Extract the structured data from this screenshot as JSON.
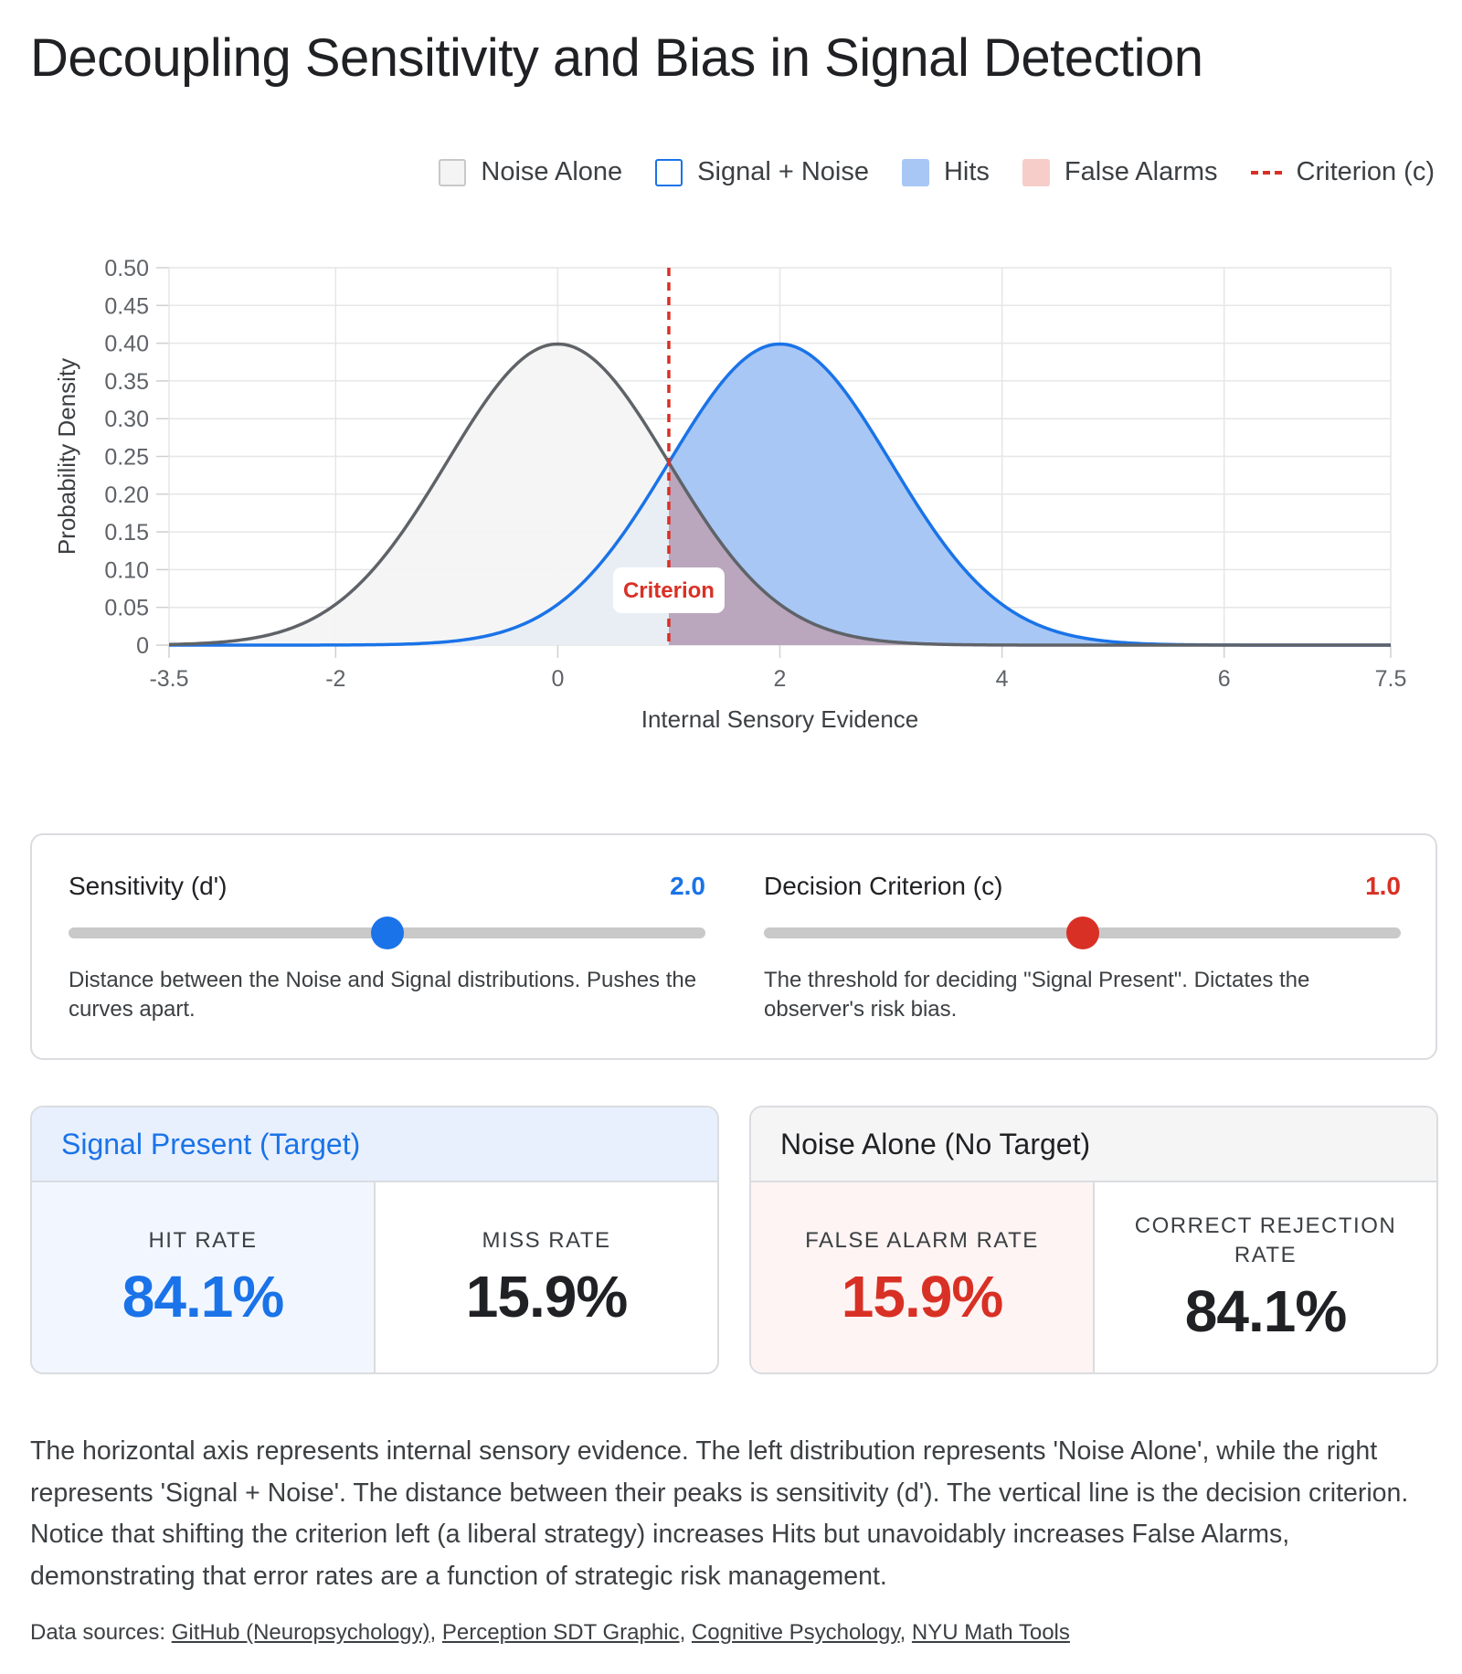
{
  "title": "Decoupling Sensitivity and Bias in Signal Detection",
  "legend": [
    {
      "key": "noise",
      "label": "Noise Alone",
      "color": "#f4f4f4"
    },
    {
      "key": "signal",
      "label": "Signal + Noise",
      "color": "#1a73e8"
    },
    {
      "key": "hits",
      "label": "Hits",
      "color": "#a8c7f5"
    },
    {
      "key": "fa",
      "label": "False Alarms",
      "color": "#f6cdc8"
    },
    {
      "key": "criterion",
      "label": "Criterion (c)",
      "color": "#d93025"
    }
  ],
  "chart_data": {
    "type": "area",
    "xlabel": "Internal Sensory Evidence",
    "ylabel": "Probability Density",
    "xlim": [
      -3.5,
      7.5
    ],
    "ylim": [
      0,
      0.5
    ],
    "x_ticks": [
      "-3.5",
      "-2",
      "0",
      "2",
      "4",
      "6",
      "7.5"
    ],
    "x_tick_values": [
      -3.5,
      -2,
      0,
      2,
      4,
      6,
      7.5
    ],
    "y_ticks": [
      "0",
      "0.05",
      "0.10",
      "0.15",
      "0.20",
      "0.25",
      "0.30",
      "0.35",
      "0.40",
      "0.45",
      "0.50"
    ],
    "y_tick_values": [
      0,
      0.05,
      0.1,
      0.15,
      0.2,
      0.25,
      0.3,
      0.35,
      0.4,
      0.45,
      0.5
    ],
    "grid": true,
    "legend_position": "top-right",
    "series": [
      {
        "name": "Noise Alone",
        "distribution": "normal",
        "mean": 0,
        "sd": 1,
        "color": "#5f6368"
      },
      {
        "name": "Signal + Noise",
        "distribution": "normal",
        "mean": 2.0,
        "sd": 1,
        "color": "#1a73e8"
      }
    ],
    "criterion": 1.0,
    "criterion_label": "Criterion",
    "criterion_color": "#d93025"
  },
  "controls": {
    "sensitivity": {
      "label": "Sensitivity (d')",
      "value": "2.0",
      "level": 0.5,
      "description": "Distance between the Noise and Signal distributions. Pushes the curves apart."
    },
    "criterion": {
      "label": "Decision Criterion (c)",
      "value": "1.0",
      "level": 0.5,
      "description": "The threshold for deciding \"Signal Present\". Dictates the observer's risk bias."
    }
  },
  "signal_present": {
    "title": "Signal Present (Target)",
    "hit_label": "HIT RATE",
    "hit_value": "84.1%",
    "miss_label": "MISS RATE",
    "miss_value": "15.9%"
  },
  "noise_alone": {
    "title": "Noise Alone (No Target)",
    "fa_label": "FALSE ALARM RATE",
    "fa_value": "15.9%",
    "cr_label": "CORRECT REJECTION RATE",
    "cr_value": "84.1%"
  },
  "explanation": "The horizontal axis represents internal sensory evidence. The left distribution represents 'Noise Alone', while the right represents 'Signal + Noise'. The distance between their peaks is sensitivity (d'). The vertical line is the decision criterion. Notice that shifting the criterion left (a liberal strategy) increases Hits but unavoidably increases False Alarms, demonstrating that error rates are a function of strategic risk management.",
  "sources": {
    "prefix": "Data sources: ",
    "links": [
      "GitHub (Neuropsychology)",
      "Perception SDT Graphic",
      "Cognitive Psychology",
      "NYU Math Tools"
    ]
  }
}
